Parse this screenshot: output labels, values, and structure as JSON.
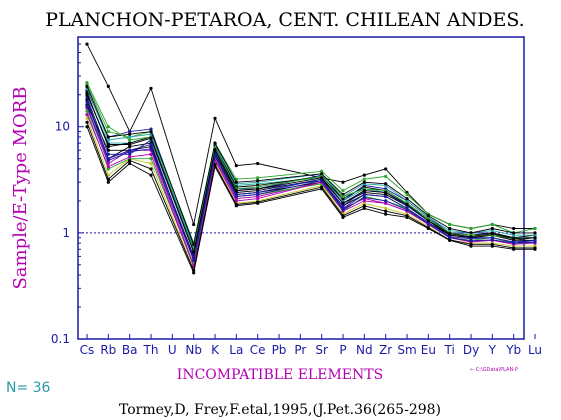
{
  "chart_data": {
    "type": "line",
    "title": "PLANCHON-PETAROA, CENT. CHILEAN ANDES.",
    "ylabel": "Sample/E-Type MORB",
    "xlabel": "INCOMPATIBLE ELEMENTS",
    "yscale": "log",
    "ylim": [
      0.1,
      70
    ],
    "yticks": [
      0.1,
      1,
      10
    ],
    "ytick_labels": [
      "0.1",
      "1",
      "10"
    ],
    "reference_line": 1,
    "categories": [
      "Cs",
      "Rb",
      "Ba",
      "Th",
      "U",
      "Nb",
      "K",
      "La",
      "Ce",
      "Pb",
      "Pr",
      "Sr",
      "P",
      "Nd",
      "Zr",
      "Sm",
      "Eu",
      "Ti",
      "Dy",
      "Y",
      "Yb",
      "Lu"
    ],
    "x_positions": [
      0,
      1,
      2,
      3,
      4,
      5,
      6,
      7,
      8,
      9,
      10,
      11,
      12,
      13,
      14,
      15,
      16,
      17,
      18,
      19,
      20,
      21
    ],
    "series": [
      {
        "color": "#000000",
        "values": [
          60,
          24,
          9,
          23,
          null,
          1.2,
          12,
          4.3,
          4.5,
          null,
          null,
          3.3,
          3.0,
          3.5,
          4.0,
          2.4,
          1.5,
          1.2,
          1.1,
          1.2,
          1.1,
          1.1
        ]
      },
      {
        "color": "#1a1aa6",
        "values": [
          22,
          8,
          9,
          9.5,
          null,
          0.75,
          6.5,
          2.6,
          2.6,
          null,
          null,
          3.5,
          2.0,
          2.8,
          2.6,
          2.0,
          1.4,
          1.0,
          1.0,
          1.0,
          0.9,
          0.9
        ]
      },
      {
        "color": "#2aa62a",
        "values": [
          25,
          9,
          8,
          9,
          null,
          0.8,
          7,
          3.2,
          3.3,
          null,
          null,
          3.8,
          2.5,
          3.2,
          3.4,
          2.3,
          1.5,
          1.2,
          1.1,
          1.2,
          1.0,
          1.1
        ]
      },
      {
        "color": "#26a6a6",
        "values": [
          20,
          7,
          7,
          8,
          null,
          0.7,
          6,
          2.8,
          2.9,
          null,
          null,
          3.3,
          2.0,
          2.6,
          2.4,
          1.9,
          1.3,
          1.0,
          0.95,
          1.0,
          0.9,
          0.9
        ]
      },
      {
        "color": "#000000",
        "values": [
          18,
          5,
          6.5,
          7,
          null,
          0.55,
          5.5,
          2.3,
          2.4,
          null,
          null,
          3.0,
          1.8,
          2.3,
          2.2,
          1.7,
          1.25,
          0.95,
          0.9,
          0.95,
          0.85,
          0.85
        ]
      },
      {
        "color": "#b300b3",
        "values": [
          15,
          4.5,
          6,
          6,
          null,
          0.5,
          5,
          2.1,
          2.2,
          null,
          null,
          3.0,
          1.7,
          2.1,
          1.9,
          1.6,
          1.2,
          0.9,
          0.85,
          0.85,
          0.8,
          0.8
        ]
      },
      {
        "color": "#c8c820",
        "values": [
          12,
          3.5,
          5,
          4.5,
          null,
          0.45,
          4.5,
          1.9,
          2.0,
          null,
          null,
          2.8,
          1.5,
          1.9,
          1.7,
          1.5,
          1.15,
          0.85,
          0.8,
          0.8,
          0.75,
          0.75
        ]
      },
      {
        "color": "#000000",
        "values": [
          16,
          6,
          6,
          6.5,
          null,
          0.6,
          5.8,
          2.4,
          2.5,
          null,
          null,
          3.2,
          1.9,
          2.4,
          2.3,
          1.8,
          1.3,
          0.95,
          0.9,
          0.95,
          0.85,
          0.9
        ]
      },
      {
        "color": "#1a1aa6",
        "values": [
          19,
          5.5,
          5.5,
          7.5,
          null,
          0.65,
          6.2,
          2.5,
          2.6,
          null,
          null,
          3.1,
          1.8,
          2.5,
          2.4,
          1.8,
          1.3,
          1.0,
          0.9,
          0.9,
          0.8,
          0.85
        ]
      },
      {
        "color": "#2aa62a",
        "values": [
          14,
          4,
          5,
          5,
          null,
          0.5,
          5.2,
          2.2,
          2.3,
          null,
          null,
          2.9,
          1.6,
          2.2,
          2.0,
          1.7,
          1.2,
          0.9,
          0.85,
          0.9,
          0.8,
          0.8
        ]
      },
      {
        "color": "#000000",
        "values": [
          21,
          6.5,
          7,
          8,
          null,
          0.7,
          6.8,
          2.7,
          2.8,
          null,
          null,
          3.4,
          2.1,
          2.7,
          2.5,
          1.9,
          1.35,
          1.0,
          0.95,
          1.0,
          0.9,
          0.95
        ]
      },
      {
        "color": "#000000",
        "values": [
          10,
          3,
          4.5,
          3.5,
          null,
          0.42,
          4.2,
          1.8,
          1.9,
          null,
          null,
          2.6,
          1.4,
          1.7,
          1.5,
          1.4,
          1.1,
          0.85,
          0.75,
          0.75,
          0.7,
          0.7
        ]
      },
      {
        "color": "#1a1aa6",
        "values": [
          17,
          5,
          6,
          6.8,
          null,
          0.58,
          5.6,
          2.3,
          2.4,
          null,
          null,
          3.2,
          1.7,
          2.3,
          2.2,
          1.7,
          1.25,
          0.92,
          0.88,
          0.9,
          0.82,
          0.85
        ]
      },
      {
        "color": "#b300b3",
        "values": [
          13,
          4.2,
          5.2,
          5.5,
          null,
          0.48,
          4.8,
          2.0,
          2.1,
          null,
          null,
          3.0,
          1.6,
          2.0,
          1.9,
          1.6,
          1.2,
          0.9,
          0.82,
          0.85,
          0.78,
          0.8
        ]
      },
      {
        "color": "#26a6a6",
        "values": [
          23,
          7.5,
          8,
          8.5,
          null,
          0.72,
          6.6,
          2.9,
          3.0,
          null,
          null,
          3.6,
          2.2,
          2.9,
          2.8,
          2.0,
          1.4,
          1.05,
          1.0,
          1.05,
          0.95,
          0.95
        ]
      },
      {
        "color": "#000000",
        "values": [
          24,
          8,
          8.5,
          9,
          null,
          0.78,
          7,
          3.0,
          3.1,
          null,
          null,
          3.6,
          2.3,
          3.0,
          2.9,
          2.1,
          1.45,
          1.1,
          1.0,
          1.1,
          1.0,
          1.0
        ]
      },
      {
        "color": "#000000",
        "values": [
          11,
          3.2,
          4.8,
          4,
          null,
          0.44,
          4.4,
          1.85,
          1.95,
          null,
          null,
          2.7,
          1.45,
          1.8,
          1.6,
          1.45,
          1.12,
          0.86,
          0.78,
          0.78,
          0.72,
          0.72
        ]
      },
      {
        "color": "#2aa62a",
        "values": [
          26,
          10,
          7.5,
          8,
          null,
          0.68,
          6.3,
          2.6,
          2.7,
          null,
          null,
          3.4,
          2.2,
          2.6,
          2.5,
          1.9,
          1.35,
          1.0,
          0.95,
          0.95,
          0.88,
          0.9
        ]
      },
      {
        "color": "#000000",
        "values": [
          20,
          6.8,
          6.8,
          7.8,
          null,
          0.66,
          6.1,
          2.5,
          2.6,
          null,
          null,
          3.3,
          1.9,
          2.5,
          2.4,
          1.85,
          1.3,
          0.98,
          0.92,
          0.98,
          0.88,
          0.9
        ]
      },
      {
        "color": "#1a1aa6",
        "values": [
          15.5,
          4.8,
          5.8,
          6.2,
          null,
          0.55,
          5.3,
          2.2,
          2.3,
          null,
          null,
          3.1,
          1.65,
          2.15,
          2.0,
          1.65,
          1.22,
          0.9,
          0.84,
          0.86,
          0.8,
          0.82
        ]
      }
    ]
  },
  "footer": {
    "count": "N= 36",
    "citation": "Tormey,D, Frey,F.etal,1995,(J.Pet.36(265-298)",
    "file_ref": "← C:\\GData\\PLAN-P"
  }
}
